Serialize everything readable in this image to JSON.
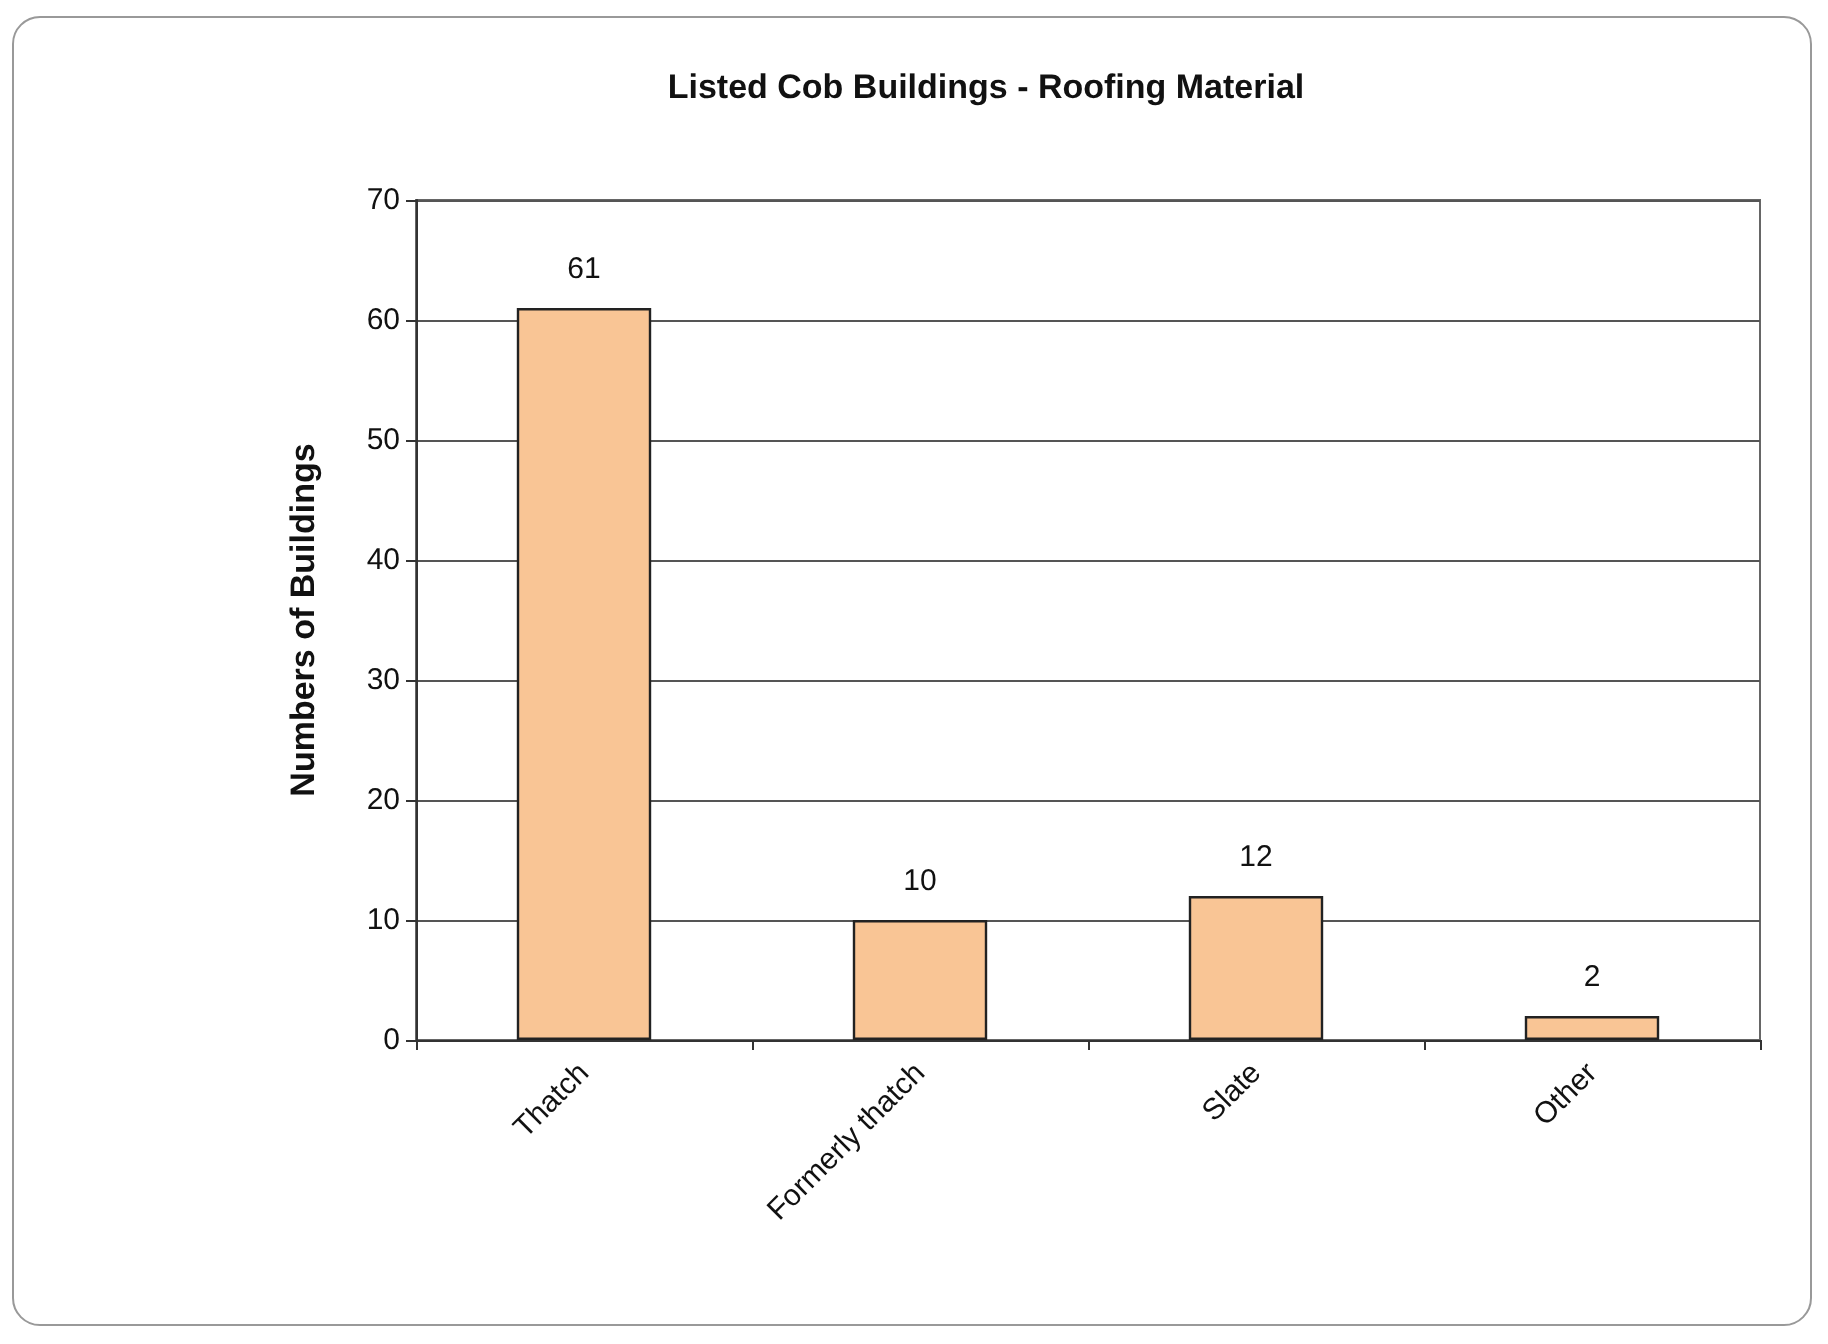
{
  "chart_data": {
    "type": "bar",
    "title": "Listed Cob Buildings - Roofing Material",
    "ylabel": "Numbers of Buildings",
    "categories": [
      "Thatch",
      "Formerly thatch",
      "Slate",
      "Other"
    ],
    "values": [
      61,
      10,
      12,
      2
    ],
    "color": "#f9c595",
    "ylim": [
      0,
      70
    ],
    "yticks": [
      0,
      10,
      20,
      30,
      40,
      50,
      60,
      70
    ],
    "grid": "y",
    "data_labels": true
  }
}
